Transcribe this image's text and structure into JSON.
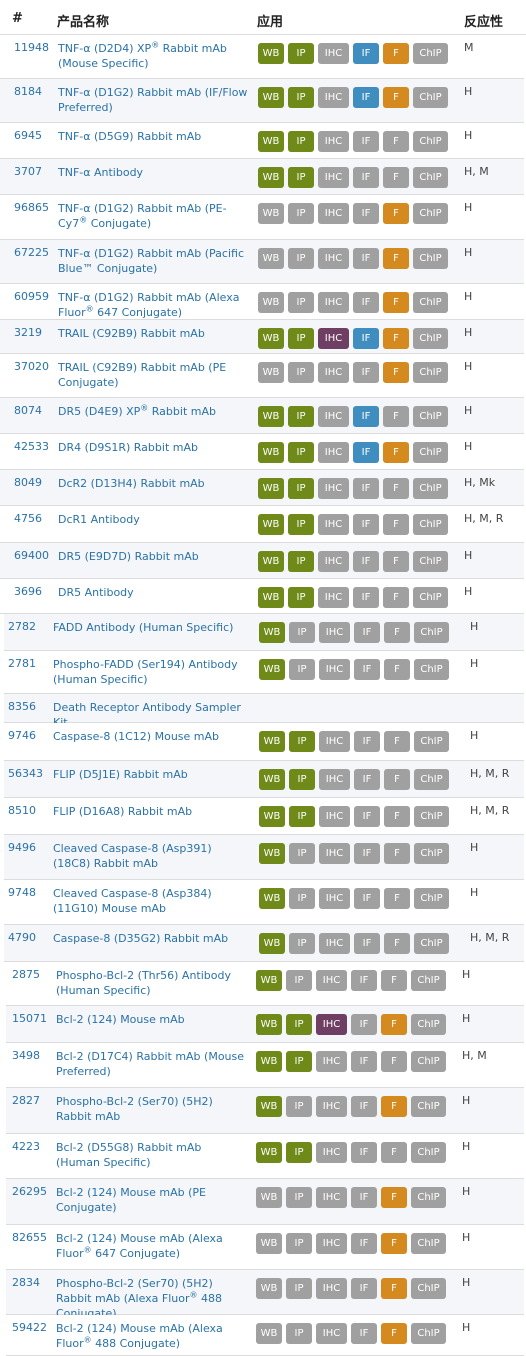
{
  "headers": {
    "num": "#",
    "name": "产品名称",
    "app": "应用",
    "react": "反应性"
  },
  "badge_labels": {
    "wb": "WB",
    "ip": "IP",
    "ihc": "IHC",
    "if": "IF",
    "f": "F",
    "chip": "ChIP"
  },
  "colors": {
    "wb_ip_active": "#6f8a19",
    "ihc_active": "#6f3f63",
    "if_active": "#3f8ebf",
    "f_active": "#d58a1f",
    "inactive": "#a0a0a0",
    "link": "#2a72a6"
  },
  "products": [
    {
      "cat": "11948",
      "name": "TNF-α (D2D4) XP® Rabbit mAb (Mouse Specific)",
      "apps": {
        "wb": true,
        "ip": true,
        "ihc": false,
        "if": true,
        "f": true,
        "chip": false
      },
      "react": "M"
    },
    {
      "cat": "8184",
      "name": "TNF-α (D1G2) Rabbit mAb (IF/Flow Preferred)",
      "apps": {
        "wb": true,
        "ip": true,
        "ihc": false,
        "if": true,
        "f": true,
        "chip": false
      },
      "react": "H"
    },
    {
      "cat": "6945",
      "name": "TNF-α (D5G9) Rabbit mAb",
      "apps": {
        "wb": true,
        "ip": true,
        "ihc": false,
        "if": false,
        "f": false,
        "chip": false
      },
      "react": "H"
    },
    {
      "cat": "3707",
      "name": "TNF-α Antibody",
      "apps": {
        "wb": true,
        "ip": true,
        "ihc": false,
        "if": false,
        "f": false,
        "chip": false
      },
      "react": "H, M"
    },
    {
      "cat": "96865",
      "name": "TNF-α (D1G2) Rabbit mAb (PE-Cy7® Conjugate)",
      "apps": {
        "wb": false,
        "ip": false,
        "ihc": false,
        "if": false,
        "f": true,
        "chip": false
      },
      "react": "H"
    },
    {
      "cat": "67225",
      "name": "TNF-α (D1G2) Rabbit mAb (Pacific Blue™ Conjugate)",
      "apps": {
        "wb": false,
        "ip": false,
        "ihc": false,
        "if": false,
        "f": true,
        "chip": false
      },
      "react": "H"
    },
    {
      "cat": "60959",
      "name": "TNF-α (D1G2) Rabbit mAb (Alexa Fluor® 647 Conjugate)",
      "apps": {
        "wb": false,
        "ip": false,
        "ihc": false,
        "if": false,
        "f": true,
        "chip": false
      },
      "react": "H"
    },
    {
      "cat": "3219",
      "name": "TRAIL (C92B9) Rabbit mAb",
      "apps": {
        "wb": true,
        "ip": true,
        "ihc": true,
        "if": true,
        "f": true,
        "chip": false
      },
      "react": "H"
    },
    {
      "cat": "37020",
      "name": "TRAIL (C92B9) Rabbit mAb (PE Conjugate)",
      "apps": {
        "wb": false,
        "ip": false,
        "ihc": false,
        "if": false,
        "f": true,
        "chip": false
      },
      "react": "H"
    },
    {
      "cat": "8074",
      "name": "DR5 (D4E9) XP® Rabbit mAb",
      "apps": {
        "wb": true,
        "ip": true,
        "ihc": false,
        "if": true,
        "f": false,
        "chip": false
      },
      "react": "H"
    },
    {
      "cat": "42533",
      "name": "DR4 (D9S1R) Rabbit mAb",
      "apps": {
        "wb": true,
        "ip": true,
        "ihc": false,
        "if": true,
        "f": true,
        "chip": false
      },
      "react": "H"
    },
    {
      "cat": "8049",
      "name": "DcR2 (D13H4) Rabbit mAb",
      "apps": {
        "wb": true,
        "ip": true,
        "ihc": false,
        "if": false,
        "f": false,
        "chip": false
      },
      "react": "H, Mk"
    },
    {
      "cat": "4756",
      "name": "DcR1 Antibody",
      "apps": {
        "wb": true,
        "ip": true,
        "ihc": false,
        "if": false,
        "f": false,
        "chip": false
      },
      "react": "H, M, R"
    },
    {
      "cat": "69400",
      "name": "DR5 (E9D7D) Rabbit mAb",
      "apps": {
        "wb": true,
        "ip": true,
        "ihc": false,
        "if": false,
        "f": false,
        "chip": false
      },
      "react": "H"
    },
    {
      "cat": "3696",
      "name": "DR5 Antibody",
      "apps": {
        "wb": true,
        "ip": true,
        "ihc": false,
        "if": false,
        "f": false,
        "chip": false
      },
      "react": "H"
    },
    {
      "cat": "2782",
      "name": "FADD Antibody (Human Specific)",
      "apps": {
        "wb": true,
        "ip": false,
        "ihc": false,
        "if": false,
        "f": false,
        "chip": false
      },
      "react": "H"
    },
    {
      "cat": "2781",
      "name": "Phospho-FADD (Ser194) Antibody (Human Specific)",
      "apps": {
        "wb": true,
        "ip": false,
        "ihc": false,
        "if": false,
        "f": false,
        "chip": false
      },
      "react": "H"
    },
    {
      "cat": "8356",
      "name": "Death Receptor Antibody Sampler Kit",
      "apps": null,
      "react": ""
    },
    {
      "cat": "9746",
      "name": "Caspase-8 (1C12) Mouse mAb",
      "apps": {
        "wb": true,
        "ip": true,
        "ihc": false,
        "if": false,
        "f": false,
        "chip": false
      },
      "react": "H"
    },
    {
      "cat": "56343",
      "name": "FLIP (D5J1E) Rabbit mAb",
      "apps": {
        "wb": true,
        "ip": true,
        "ihc": false,
        "if": false,
        "f": false,
        "chip": false
      },
      "react": "H, M, R"
    },
    {
      "cat": "8510",
      "name": "FLIP (D16A8) Rabbit mAb",
      "apps": {
        "wb": true,
        "ip": true,
        "ihc": false,
        "if": false,
        "f": false,
        "chip": false
      },
      "react": "H, M, R"
    },
    {
      "cat": "9496",
      "name": "Cleaved Caspase-8 (Asp391) (18C8) Rabbit mAb",
      "apps": {
        "wb": true,
        "ip": false,
        "ihc": false,
        "if": false,
        "f": false,
        "chip": false
      },
      "react": "H"
    },
    {
      "cat": "9748",
      "name": "Cleaved Caspase-8 (Asp384) (11G10) Mouse mAb",
      "apps": {
        "wb": true,
        "ip": false,
        "ihc": false,
        "if": false,
        "f": false,
        "chip": false
      },
      "react": "H"
    },
    {
      "cat": "4790",
      "name": "Caspase-8 (D35G2) Rabbit mAb",
      "apps": {
        "wb": true,
        "ip": false,
        "ihc": false,
        "if": false,
        "f": false,
        "chip": false
      },
      "react": "H, M, R"
    },
    {
      "cat": "2875",
      "name": "Phospho-Bcl-2 (Thr56) Antibody (Human Specific)",
      "apps": {
        "wb": true,
        "ip": false,
        "ihc": false,
        "if": false,
        "f": false,
        "chip": false
      },
      "react": "H"
    },
    {
      "cat": "15071",
      "name": "Bcl-2 (124) Mouse mAb",
      "apps": {
        "wb": true,
        "ip": true,
        "ihc": true,
        "if": false,
        "f": true,
        "chip": false
      },
      "react": "H"
    },
    {
      "cat": "3498",
      "name": "Bcl-2 (D17C4) Rabbit mAb (Mouse Preferred)",
      "apps": {
        "wb": true,
        "ip": true,
        "ihc": false,
        "if": false,
        "f": false,
        "chip": false
      },
      "react": "H, M"
    },
    {
      "cat": "2827",
      "name": "Phospho-Bcl-2 (Ser70) (5H2) Rabbit mAb",
      "apps": {
        "wb": true,
        "ip": false,
        "ihc": false,
        "if": false,
        "f": true,
        "chip": false
      },
      "react": "H"
    },
    {
      "cat": "4223",
      "name": "Bcl-2 (D55G8) Rabbit mAb (Human Specific)",
      "apps": {
        "wb": true,
        "ip": true,
        "ihc": false,
        "if": false,
        "f": false,
        "chip": false
      },
      "react": "H"
    },
    {
      "cat": "26295",
      "name": "Bcl-2 (124) Mouse mAb (PE Conjugate)",
      "apps": {
        "wb": false,
        "ip": false,
        "ihc": false,
        "if": false,
        "f": true,
        "chip": false
      },
      "react": "H"
    },
    {
      "cat": "82655",
      "name": "Bcl-2 (124) Mouse mAb (Alexa Fluor® 647 Conjugate)",
      "apps": {
        "wb": false,
        "ip": false,
        "ihc": false,
        "if": false,
        "f": true,
        "chip": false
      },
      "react": "H"
    },
    {
      "cat": "2834",
      "name": "Phospho-Bcl-2 (Ser70) (5H2) Rabbit mAb (Alexa Fluor® 488 Conjugate)",
      "apps": {
        "wb": false,
        "ip": false,
        "ihc": false,
        "if": false,
        "f": true,
        "chip": false
      },
      "react": "H"
    },
    {
      "cat": "59422",
      "name": "Bcl-2 (124) Mouse mAb (Alexa Fluor® 488 Conjugate)",
      "apps": {
        "wb": false,
        "ip": false,
        "ihc": false,
        "if": false,
        "f": true,
        "chip": false
      },
      "react": "H"
    }
  ]
}
